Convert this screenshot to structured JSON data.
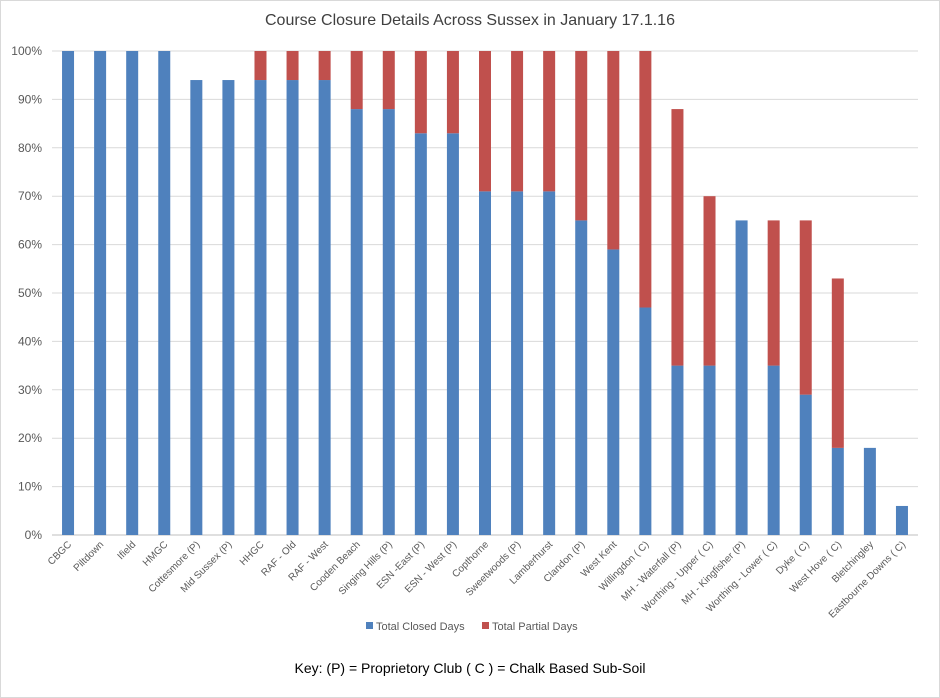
{
  "chart_data": {
    "type": "bar",
    "stacked": true,
    "title": "Course Closure Details Across Sussex in January 17.1.16",
    "xlabel": "",
    "ylabel": "",
    "ylim": [
      0,
      100
    ],
    "yticks": [
      "0%",
      "10%",
      "20%",
      "30%",
      "40%",
      "50%",
      "60%",
      "70%",
      "80%",
      "90%",
      "100%"
    ],
    "grid": true,
    "legend_position": "bottom",
    "categories": [
      "CBGC",
      "Piltdown",
      "Ifield",
      "HMGC",
      "Cottesmore (P)",
      "Mid Sussex (P)",
      "HHGC",
      "RAF - Old",
      "RAF - West",
      "Cooden Beach",
      "Singing Hills (P)",
      "ESN -East (P)",
      "ESN - West (P)",
      "Copthorne",
      "Sweetwoods (P)",
      "Lamberhurst",
      "Clandon (P)",
      "West Kent",
      "Willingdon ( C)",
      "MH - Waterfall (P)",
      "Worthing - Upper ( C)",
      "MH - Kingfisher (P)",
      "Worthing - Lower ( C)",
      "Dyke ( C)",
      "West Hove ( C)",
      "Bletchingley",
      "Eastbourne Downs ( C)"
    ],
    "series": [
      {
        "name": "Total Closed Days",
        "color": "#4f81bd",
        "values": [
          100,
          100,
          100,
          100,
          94,
          94,
          94,
          94,
          94,
          88,
          88,
          83,
          83,
          71,
          71,
          71,
          65,
          59,
          47,
          35,
          35,
          65,
          35,
          29,
          18,
          18,
          6
        ]
      },
      {
        "name": "Total Partial Days",
        "color": "#c0504d",
        "values": [
          0,
          0,
          0,
          0,
          0,
          0,
          6,
          6,
          6,
          12,
          12,
          17,
          17,
          29,
          29,
          29,
          35,
          41,
          53,
          53,
          35,
          0,
          30,
          36,
          35,
          0,
          0
        ]
      }
    ]
  },
  "key_text": "Key: (P) = Proprietory Club ( C ) = Chalk Based Sub-Soil"
}
